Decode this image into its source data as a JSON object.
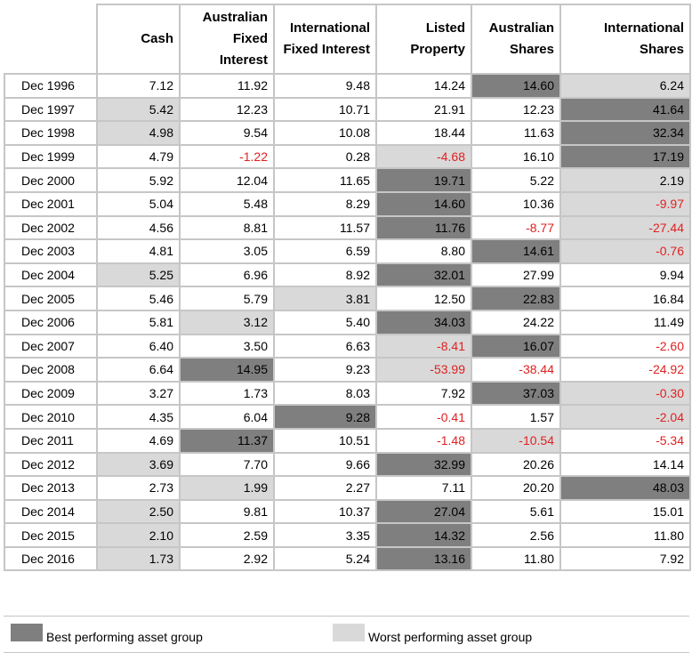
{
  "chart_data": {
    "type": "table",
    "columns": [
      "",
      "Cash",
      "Australian Fixed Interest",
      "International Fixed Interest",
      "Listed Property",
      "Australian Shares",
      "International Shares"
    ],
    "rows": [
      {
        "year": "Dec 1996",
        "values": [
          "7.12",
          "11.92",
          "9.48",
          "14.24",
          "14.60",
          "6.24"
        ],
        "best": 4,
        "worst": 5
      },
      {
        "year": "Dec 1997",
        "values": [
          "5.42",
          "12.23",
          "10.71",
          "21.91",
          "12.23",
          "41.64"
        ],
        "best": 5,
        "worst": 0
      },
      {
        "year": "Dec 1998",
        "values": [
          "4.98",
          "9.54",
          "10.08",
          "18.44",
          "11.63",
          "32.34"
        ],
        "best": 5,
        "worst": 0
      },
      {
        "year": "Dec 1999",
        "values": [
          "4.79",
          "-1.22",
          "0.28",
          "-4.68",
          "16.10",
          "17.19"
        ],
        "best": 5,
        "worst": 3
      },
      {
        "year": "Dec 2000",
        "values": [
          "5.92",
          "12.04",
          "11.65",
          "19.71",
          "5.22",
          "2.19"
        ],
        "best": 3,
        "worst": 5
      },
      {
        "year": "Dec 2001",
        "values": [
          "5.04",
          "5.48",
          "8.29",
          "14.60",
          "10.36",
          "-9.97"
        ],
        "best": 3,
        "worst": 5
      },
      {
        "year": "Dec 2002",
        "values": [
          "4.56",
          "8.81",
          "11.57",
          "11.76",
          "-8.77",
          "-27.44"
        ],
        "best": 3,
        "worst": 5
      },
      {
        "year": "Dec 2003",
        "values": [
          "4.81",
          "3.05",
          "6.59",
          "8.80",
          "14.61",
          "-0.76"
        ],
        "best": 4,
        "worst": 5
      },
      {
        "year": "Dec 2004",
        "values": [
          "5.25",
          "6.96",
          "8.92",
          "32.01",
          "27.99",
          "9.94"
        ],
        "best": 3,
        "worst": 0
      },
      {
        "year": "Dec 2005",
        "values": [
          "5.46",
          "5.79",
          "3.81",
          "12.50",
          "22.83",
          "16.84"
        ],
        "best": 4,
        "worst": 2
      },
      {
        "year": "Dec 2006",
        "values": [
          "5.81",
          "3.12",
          "5.40",
          "34.03",
          "24.22",
          "11.49"
        ],
        "best": 3,
        "worst": 1
      },
      {
        "year": "Dec 2007",
        "values": [
          "6.40",
          "3.50",
          "6.63",
          "-8.41",
          "16.07",
          "-2.60"
        ],
        "best": 4,
        "worst": 3
      },
      {
        "year": "Dec 2008",
        "values": [
          "6.64",
          "14.95",
          "9.23",
          "-53.99",
          "-38.44",
          "-24.92"
        ],
        "best": 1,
        "worst": 3
      },
      {
        "year": "Dec 2009",
        "values": [
          "3.27",
          "1.73",
          "8.03",
          "7.92",
          "37.03",
          "-0.30"
        ],
        "best": 4,
        "worst": 5
      },
      {
        "year": "Dec 2010",
        "values": [
          "4.35",
          "6.04",
          "9.28",
          "-0.41",
          "1.57",
          "-2.04"
        ],
        "best": 2,
        "worst": 5
      },
      {
        "year": "Dec 2011",
        "values": [
          "4.69",
          "11.37",
          "10.51",
          "-1.48",
          "-10.54",
          "-5.34"
        ],
        "best": 1,
        "worst": 4
      },
      {
        "year": "Dec 2012",
        "values": [
          "3.69",
          "7.70",
          "9.66",
          "32.99",
          "20.26",
          "14.14"
        ],
        "best": 3,
        "worst": 0
      },
      {
        "year": "Dec 2013",
        "values": [
          "2.73",
          "1.99",
          "2.27",
          "7.11",
          "20.20",
          "48.03"
        ],
        "best": 5,
        "worst": 1
      },
      {
        "year": "Dec 2014",
        "values": [
          "2.50",
          "9.81",
          "10.37",
          "27.04",
          "5.61",
          "15.01"
        ],
        "best": 3,
        "worst": 0
      },
      {
        "year": "Dec 2015",
        "values": [
          "2.10",
          "2.59",
          "3.35",
          "14.32",
          "2.56",
          "11.80"
        ],
        "best": 3,
        "worst": 0
      },
      {
        "year": "Dec 2016",
        "values": [
          "1.73",
          "2.92",
          "5.24",
          "13.16",
          "11.80",
          "7.92"
        ],
        "best": 3,
        "worst": 0
      }
    ],
    "legend": {
      "best_label": "Best performing asset group",
      "worst_label": "Worst performing asset group"
    },
    "colors": {
      "best": "#7f7f7f",
      "worst": "#d9d9d9",
      "negative": "#e02020",
      "grid": "#c6c6c6"
    }
  }
}
